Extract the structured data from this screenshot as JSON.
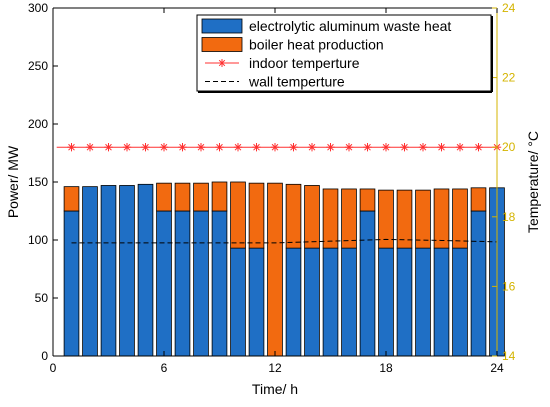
{
  "chart_data": {
    "type": "bar",
    "xlabel": "Time/ h",
    "ylabel": "Power/ MW",
    "y2label": "Temperature/ °C",
    "xlim": [
      0,
      24
    ],
    "ylim": [
      0,
      300
    ],
    "y2lim": [
      14,
      24
    ],
    "xticks": [
      0,
      6,
      12,
      18,
      24
    ],
    "yticks": [
      0,
      50,
      100,
      150,
      200,
      250,
      300
    ],
    "y2ticks": [
      14,
      16,
      18,
      20,
      22,
      24
    ],
    "grid": false,
    "legend_position": "top-right",
    "x": [
      1,
      2,
      3,
      4,
      5,
      6,
      7,
      8,
      9,
      10,
      11,
      12,
      13,
      14,
      15,
      16,
      17,
      18,
      19,
      20,
      21,
      22,
      23,
      24
    ],
    "series": [
      {
        "name": "electrolytic aluminum waste heat",
        "kind": "bar",
        "axis": "left",
        "color": "#1f6fc5",
        "values": [
          125,
          146,
          147,
          147,
          148,
          125,
          125,
          125,
          125,
          93,
          93,
          0,
          93,
          93,
          93,
          93,
          125,
          93,
          93,
          93,
          93,
          93,
          125,
          145
        ]
      },
      {
        "name": "boiler heat production",
        "kind": "bar",
        "axis": "left",
        "color": "#f26a10",
        "values": [
          21,
          0,
          0,
          0,
          0,
          24,
          24,
          24,
          25,
          57,
          56,
          149,
          55,
          54,
          51,
          51,
          19,
          50,
          50,
          50,
          51,
          51,
          20,
          0
        ]
      },
      {
        "name": "indoor temperture",
        "kind": "line",
        "axis": "right",
        "color": "#ff3030",
        "marker": "asterisk",
        "x": [
          0.2,
          1,
          2,
          3,
          4,
          5,
          6,
          7,
          8,
          9,
          10,
          11,
          12,
          13,
          14,
          15,
          16,
          17,
          18,
          19,
          20,
          21,
          22,
          23,
          24
        ],
        "values": [
          20,
          20,
          20,
          20,
          20,
          20,
          20,
          20,
          20,
          20,
          20,
          20,
          20,
          20,
          20,
          20,
          20,
          20,
          20,
          20,
          20,
          20,
          20,
          20,
          20
        ]
      },
      {
        "name": "wall temperture",
        "kind": "line",
        "axis": "right",
        "color": "#000000",
        "dashed": true,
        "x": [
          1,
          9.5,
          12,
          15,
          18,
          21,
          24
        ],
        "values": [
          17.25,
          17.25,
          17.25,
          17.3,
          17.35,
          17.32,
          17.28
        ]
      }
    ]
  },
  "colors": {
    "left_axis": "#000000",
    "right_axis": "#d4b400"
  }
}
